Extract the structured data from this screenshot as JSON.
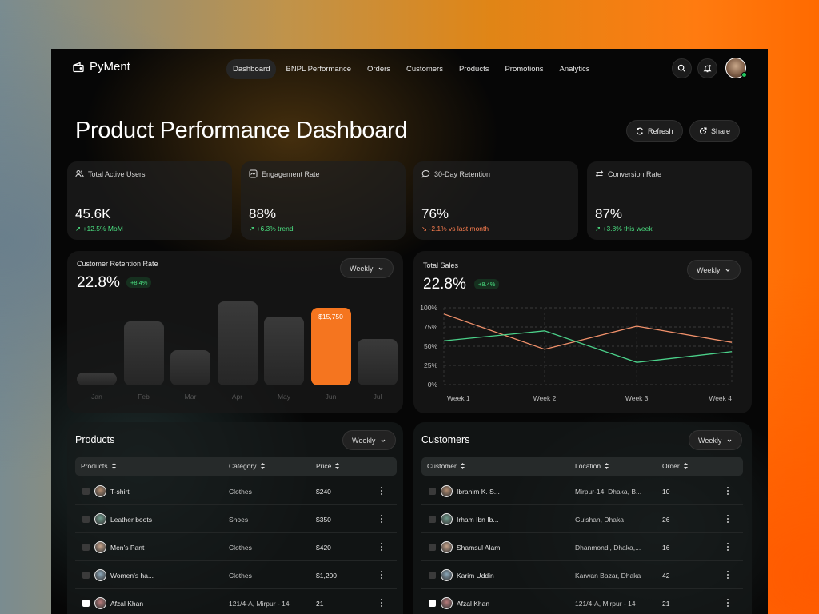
{
  "app": {
    "name": "PyMent"
  },
  "nav": [
    {
      "label": "Dashboard",
      "active": true
    },
    {
      "label": "BNPL Performance",
      "active": false
    },
    {
      "label": "Orders",
      "active": false
    },
    {
      "label": "Customers",
      "active": false
    },
    {
      "label": "Products",
      "active": false
    },
    {
      "label": "Promotions",
      "active": false
    },
    {
      "label": "Analytics",
      "active": false
    }
  ],
  "page": {
    "title": "Product Performance Dashboard",
    "refresh_label": "Refresh",
    "share_label": "Share"
  },
  "stats": [
    {
      "label": "Total Active Users",
      "value": "45.6K",
      "change": "+12.5% MoM",
      "trend": "up",
      "icon": "users-icon"
    },
    {
      "label": "Engagement Rate",
      "value": "88%",
      "change": "+6.3% trend",
      "trend": "up",
      "icon": "activity-icon"
    },
    {
      "label": "30-Day Retention",
      "value": "76%",
      "change": "-2.1% vs last month",
      "trend": "down",
      "icon": "chat-icon"
    },
    {
      "label": "Conversion Rate",
      "value": "87%",
      "change": "+3.8% this week",
      "trend": "up",
      "icon": "swap-icon"
    }
  ],
  "retention": {
    "title": "Customer Retention Rate",
    "value": "22.8%",
    "badge": "+8.4%",
    "period": "Weekly"
  },
  "sales": {
    "title": "Total Sales",
    "value": "22.8%",
    "badge": "+8.4%",
    "period": "Weekly"
  },
  "chart_data": [
    {
      "type": "bar",
      "categories": [
        "Jan",
        "Feb",
        "Mar",
        "Apr",
        "May",
        "Jun",
        "Jul"
      ],
      "values": [
        15,
        76,
        42,
        100,
        82,
        92,
        55
      ],
      "highlight": {
        "category": "Jun",
        "label": "$15,750"
      },
      "colors": {
        "bar": "#333333",
        "highlight": "#f5751f"
      }
    },
    {
      "type": "line",
      "categories": [
        "Week 1",
        "Week 2",
        "Week 3",
        "Week 4"
      ],
      "ylim": [
        0,
        100
      ],
      "yticks": [
        "100%",
        "75%",
        "50%",
        "25%",
        "0%"
      ],
      "grid": true,
      "series": [
        {
          "color": "#f0906a",
          "x": [
            0,
            0.35,
            0.67,
            1
          ],
          "values": [
            92,
            46,
            76,
            55
          ]
        },
        {
          "color": "#4bd18a",
          "x": [
            0,
            0.35,
            0.67,
            1
          ],
          "values": [
            57,
            70,
            29,
            43
          ]
        }
      ]
    }
  ],
  "products": {
    "title": "Products",
    "period": "Weekly",
    "columns": [
      "Products",
      "Category",
      "Price"
    ],
    "rows": [
      {
        "name": "T-shirt",
        "category": "Clothes",
        "price": "$240",
        "checked": false
      },
      {
        "name": "Leather boots",
        "category": "Shoes",
        "price": "$350",
        "checked": false
      },
      {
        "name": "Men’s Pant",
        "category": "Clothes",
        "price": "$420",
        "checked": false
      },
      {
        "name": "Women’s ha...",
        "category": "Clothes",
        "price": "$1,200",
        "checked": false
      },
      {
        "name": "Afzal Khan",
        "category": "121/4-A, Mirpur - 14",
        "price": "21",
        "checked": true
      }
    ]
  },
  "customers": {
    "title": "Customers",
    "period": "Weekly",
    "columns": [
      "Customer",
      "Location",
      "Order"
    ],
    "rows": [
      {
        "name": "Ibrahim K. S...",
        "location": "Mirpur-14, Dhaka, B...",
        "order": "10",
        "checked": false
      },
      {
        "name": "Irham Ibn Ib...",
        "location": "Gulshan, Dhaka",
        "order": "26",
        "checked": false
      },
      {
        "name": "Shamsul Alam",
        "location": "Dhanmondi, Dhaka,...",
        "order": "16",
        "checked": false
      },
      {
        "name": "Karim Uddin",
        "location": "Karwan Bazar, Dhaka",
        "order": "42",
        "checked": false
      },
      {
        "name": "Afzal Khan",
        "location": "121/4-A, Mirpur - 14",
        "order": "21",
        "checked": true
      }
    ]
  }
}
